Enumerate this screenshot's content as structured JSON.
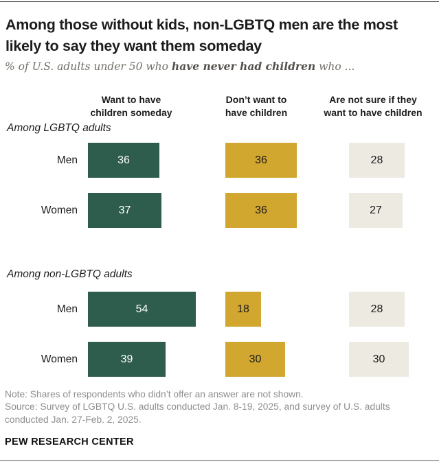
{
  "header": {
    "title": "Among those without kids, non-LGBTQ men are the most likely to say they want them someday",
    "subtitle_prefix": "% of U.S. adults under 50 who ",
    "subtitle_bold": "have never had children",
    "subtitle_suffix": " who ..."
  },
  "chart_data": {
    "type": "bar",
    "unit": "%",
    "orientation": "horizontal",
    "value_labels_inside_bars": true,
    "columns": [
      {
        "label": "Want to have children someday",
        "label_lines": [
          "Want to have",
          "children someday"
        ],
        "color": "#2f5d4d",
        "value_color": "#ffffff"
      },
      {
        "label": "Don’t want to have children",
        "label_lines": [
          "Don’t want to",
          "have children"
        ],
        "color": "#d1a730",
        "value_color": "#1a1a1a"
      },
      {
        "label": "Are not sure if they want to have children",
        "label_lines": [
          "Are not sure if they",
          "want to have children"
        ],
        "color": "#edeae2",
        "value_color": "#1a1a1a"
      }
    ],
    "sections": [
      {
        "label": "Among LGBTQ adults",
        "rows": [
          {
            "label": "Men",
            "values": [
              36,
              36,
              28
            ]
          },
          {
            "label": "Women",
            "values": [
              37,
              36,
              27
            ]
          }
        ]
      },
      {
        "label": "Among non-LGBTQ adults",
        "rows": [
          {
            "label": "Men",
            "values": [
              54,
              18,
              28
            ]
          },
          {
            "label": "Women",
            "values": [
              39,
              30,
              30
            ]
          }
        ]
      }
    ]
  },
  "footer": {
    "note": "Note: Shares of respondents who didn’t offer an answer are not shown.",
    "source": "Source: Survey of LGBTQ U.S. adults conducted Jan. 8-19, 2025, and survey of U.S. adults conducted Jan. 27-Feb. 2, 2025.",
    "brand": "PEW RESEARCH CENTER"
  }
}
